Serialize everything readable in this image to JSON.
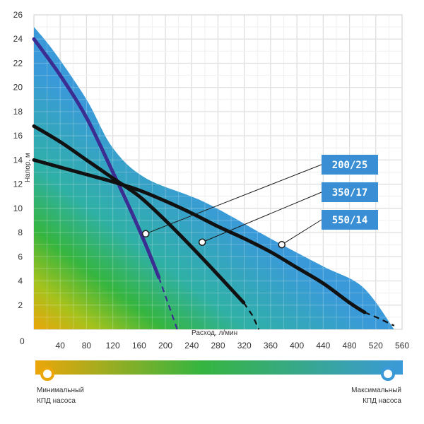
{
  "chart_data": {
    "type": "line",
    "xlabel": "Расход, л/мин",
    "ylabel": "Напор, м",
    "xlim": [
      0,
      560
    ],
    "ylim": [
      0,
      26
    ],
    "x_ticks": [
      "40",
      "80",
      "120",
      "160",
      "200",
      "240",
      "280",
      "320",
      "360",
      "400",
      "440",
      "480",
      "520",
      "560"
    ],
    "y_ticks": [
      "2",
      "4",
      "6",
      "8",
      "10",
      "12",
      "14",
      "16",
      "18",
      "20",
      "22",
      "24",
      "26"
    ],
    "origin_label": "0",
    "grid": true,
    "efficiency_zone": {
      "boundary": [
        [
          0,
          25
        ],
        [
          30,
          23
        ],
        [
          80,
          19
        ],
        [
          120,
          15
        ],
        [
          170,
          12.5
        ],
        [
          260,
          10.5
        ],
        [
          360,
          7.5
        ],
        [
          440,
          5.2
        ],
        [
          500,
          3.5
        ],
        [
          548,
          0
        ],
        [
          0,
          0
        ]
      ]
    },
    "series": [
      {
        "name": "200/25",
        "values": [
          [
            0,
            24
          ],
          [
            40,
            21
          ],
          [
            80,
            17.5
          ],
          [
            120,
            13
          ],
          [
            150,
            9.5
          ],
          [
            170,
            7
          ],
          [
            190,
            4.3
          ]
        ],
        "extrapolated": [
          [
            190,
            4.3
          ],
          [
            205,
            2
          ],
          [
            218,
            0
          ]
        ],
        "marker": [
          170,
          7.9
        ]
      },
      {
        "name": "350/17",
        "values": [
          [
            0,
            16.8
          ],
          [
            40,
            15.5
          ],
          [
            80,
            14
          ],
          [
            120,
            12.5
          ],
          [
            160,
            11
          ],
          [
            200,
            9
          ],
          [
            240,
            6.8
          ],
          [
            280,
            4.5
          ],
          [
            319,
            2.2
          ]
        ],
        "extrapolated": [
          [
            319,
            2.2
          ],
          [
            333,
            1.1
          ],
          [
            342,
            0
          ]
        ],
        "marker": [
          256,
          7.2
        ]
      },
      {
        "name": "550/14",
        "values": [
          [
            0,
            14
          ],
          [
            40,
            13.4
          ],
          [
            80,
            12.8
          ],
          [
            120,
            12.2
          ],
          [
            160,
            11.5
          ],
          [
            200,
            10.6
          ],
          [
            240,
            9.6
          ],
          [
            280,
            8.5
          ],
          [
            320,
            7.5
          ],
          [
            360,
            6.4
          ],
          [
            400,
            5.1
          ],
          [
            440,
            3.8
          ],
          [
            480,
            2.2
          ],
          [
            503,
            1.4
          ]
        ],
        "extrapolated": [
          [
            503,
            1.4
          ],
          [
            525,
            0.9
          ],
          [
            548,
            0.3
          ]
        ],
        "marker": [
          377,
          7
        ]
      }
    ],
    "legend": {
      "min_label_1": "Минимальный",
      "min_label_2": "КПД насоса",
      "max_label_1": "Максимальный",
      "max_label_2": "КПД насоса"
    },
    "colors": {
      "low": "#eba60a",
      "mid": "#35b53f",
      "high": "#3a9ad9",
      "curve_blue": "#3b2d91",
      "curve_black": "#111111",
      "tag_bg": "#3a8fd4",
      "grid": "#e2e2e2"
    }
  }
}
